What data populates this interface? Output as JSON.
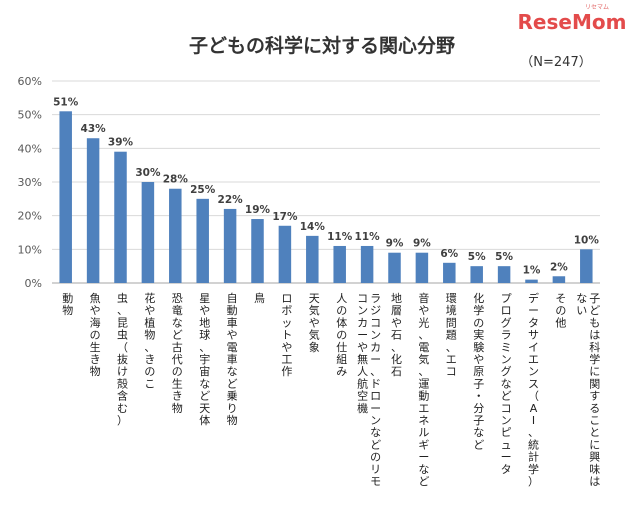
{
  "logo": {
    "text": "ReseMom",
    "ruby": "リセマム",
    "color": "#e34b4b"
  },
  "chart_data": {
    "type": "bar",
    "title": "子どもの科学に対する関心分野",
    "note": "（N=247）",
    "ylim": [
      0,
      60
    ],
    "yticks": [
      "0%",
      "10%",
      "20%",
      "30%",
      "40%",
      "50%",
      "60%"
    ],
    "grid": true,
    "bar_color": "#4f81bd",
    "categories": [
      "動物",
      "魚や海の生き物",
      "虫、昆虫（抜け殻含む）",
      "花や植物、きのこ",
      "恐竜など古代の生き物",
      "星や地球、宇宙など天体",
      "自動車や電車など乗り物",
      "鳥",
      "ロボットや工作",
      "天気や気象",
      "人の体の仕組み",
      "ラジコンカー、ドローンなどのリモコンカーや無人航空機",
      "地層や石、化石",
      "音や光、電気、運動エネルギーなど",
      "環境問題、エコ",
      "化学の実験や原子・分子など",
      "プログラミングなどコンピュータ",
      "データサイエンス（AI、統計学）",
      "その他",
      "子どもは科学に関することに興味はない"
    ],
    "values": [
      51,
      43,
      39,
      30,
      28,
      25,
      22,
      19,
      17,
      14,
      11,
      11,
      9,
      9,
      6,
      5,
      5,
      1,
      2,
      10
    ],
    "data_labels": [
      "51%",
      "43%",
      "39%",
      "30%",
      "28%",
      "25%",
      "22%",
      "19%",
      "17%",
      "14%",
      "11%",
      "11%",
      "9%",
      "9%",
      "6%",
      "5%",
      "5%",
      "1%",
      "2%",
      "10%"
    ]
  }
}
